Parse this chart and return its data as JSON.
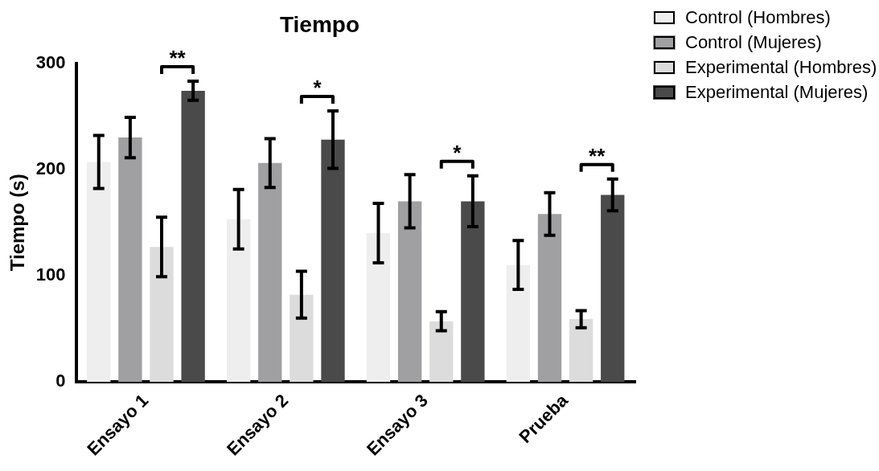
{
  "chart_data": {
    "type": "bar",
    "title": "Tiempo",
    "ylabel": "Tiempo (s)",
    "categories": [
      "Ensayo 1",
      "Ensayo 2",
      "Ensayo 3",
      "Prueba"
    ],
    "series": [
      {
        "name": "Control (Hombres)",
        "color": "#eeeeee",
        "values": [
          207,
          153,
          140,
          110
        ],
        "errors": [
          25,
          28,
          28,
          23
        ]
      },
      {
        "name": "Control (Mujeres)",
        "color": "#a0a0a2",
        "values": [
          230,
          206,
          170,
          158
        ],
        "errors": [
          19,
          23,
          25,
          20
        ]
      },
      {
        "name": "Experimental (Hombres)",
        "color": "#dcdcdc",
        "values": [
          127,
          82,
          57,
          59
        ],
        "errors": [
          28,
          22,
          9,
          8
        ]
      },
      {
        "name": "Experimental (Mujeres)",
        "color": "#4a4a4a",
        "values": [
          274,
          228,
          170,
          176
        ],
        "errors": [
          9,
          27,
          24,
          15
        ]
      }
    ],
    "ylim": [
      0,
      300
    ],
    "yticks": [
      0,
      100,
      200,
      300
    ],
    "grid": false,
    "legend": "top right",
    "annotations": [
      "**",
      "*",
      "*",
      "**"
    ]
  }
}
